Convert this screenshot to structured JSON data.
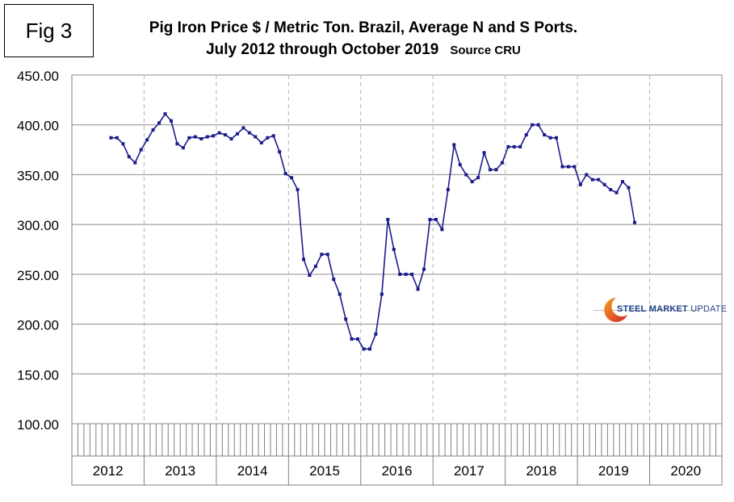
{
  "figure_label": "Fig 3",
  "title_line1": "Pig Iron Price $ / Metric Ton. Brazil, Average N and S Ports.",
  "title_line2": "July 2012 through October 2019",
  "source_note": "Source CRU",
  "logo": {
    "word1": "STEEL",
    "word2": "MARKET",
    "word3": "UPDATE"
  },
  "colors": {
    "line": "#1c1c8c",
    "grid": "#8c8c8c",
    "vgrid": "#b4b4b4"
  },
  "chart_data": {
    "type": "line",
    "title": "Pig Iron Price $ / Metric Ton. Brazil, Average N and S Ports.",
    "subtitle": "July 2012 through October 2019",
    "xlabel": "",
    "ylabel": "",
    "ylim": [
      100,
      450
    ],
    "yticks": [
      "100.00",
      "150.00",
      "200.00",
      "250.00",
      "300.00",
      "350.00",
      "400.00",
      "450.00"
    ],
    "ytick_values": [
      100,
      150,
      200,
      250,
      300,
      350,
      400,
      450
    ],
    "year_labels": [
      "2012",
      "2013",
      "2014",
      "2015",
      "2016",
      "2017",
      "2018",
      "2019",
      "2020"
    ],
    "first_year_start_month": 1,
    "grid": true,
    "series": [
      {
        "start": "2012-07",
        "values": [
          387,
          387,
          381,
          368,
          362,
          375,
          385,
          395,
          402,
          411,
          404,
          381,
          377,
          387,
          388,
          386,
          388,
          389,
          392,
          390,
          386,
          391,
          397,
          392,
          388,
          382,
          387,
          389,
          373,
          351,
          347,
          335,
          265,
          249,
          258,
          270,
          270,
          245,
          230,
          205,
          185,
          185,
          175,
          175,
          190,
          230,
          305,
          275,
          250,
          250,
          250,
          235,
          255,
          305,
          305,
          295,
          335,
          380,
          360,
          350,
          343,
          347,
          372,
          355,
          355,
          362,
          378,
          378,
          378,
          390,
          400,
          400,
          390,
          387,
          387,
          358,
          358,
          358,
          340,
          350,
          345,
          345,
          340,
          335,
          332,
          343,
          337,
          302
        ]
      }
    ]
  }
}
